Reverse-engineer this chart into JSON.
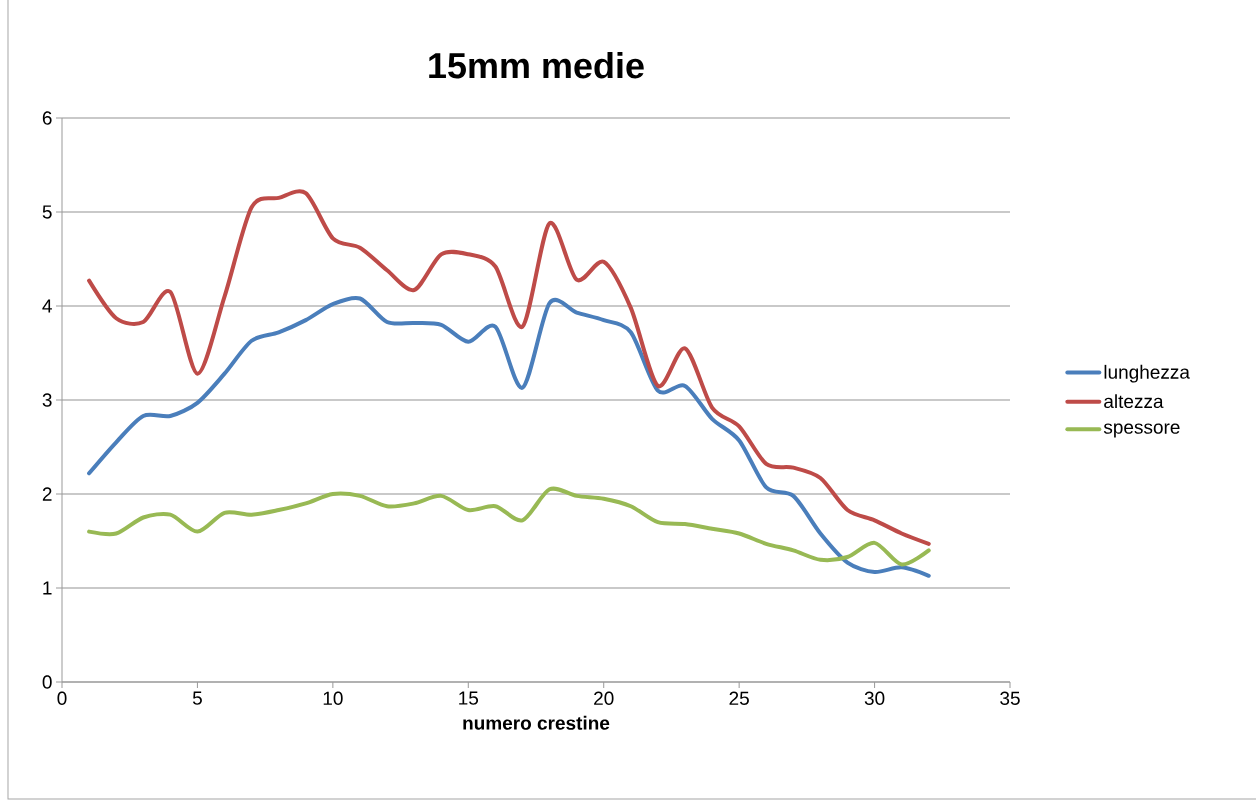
{
  "chart_data": {
    "type": "line",
    "title": "15mm medie",
    "xlabel": "numero crestine",
    "x": [
      1,
      2,
      3,
      4,
      5,
      6,
      7,
      8,
      9,
      10,
      11,
      12,
      13,
      14,
      15,
      16,
      17,
      18,
      19,
      20,
      21,
      22,
      23,
      24,
      25,
      26,
      27,
      28,
      29,
      30,
      31,
      32
    ],
    "series": [
      {
        "name": "lunghezza",
        "color": "#4a7ebb",
        "values": [
          2.22,
          2.55,
          2.83,
          2.83,
          2.97,
          3.28,
          3.63,
          3.72,
          3.85,
          4.02,
          4.08,
          3.83,
          3.82,
          3.8,
          3.62,
          3.78,
          3.13,
          4.03,
          3.93,
          3.85,
          3.72,
          3.1,
          3.15,
          2.8,
          2.57,
          2.07,
          1.98,
          1.58,
          1.27,
          1.17,
          1.22,
          1.13
        ]
      },
      {
        "name": "altezza",
        "color": "#be4b48",
        "values": [
          4.27,
          3.87,
          3.83,
          4.15,
          3.28,
          4.1,
          5.05,
          5.15,
          5.2,
          4.72,
          4.62,
          4.38,
          4.17,
          4.55,
          4.55,
          4.42,
          3.78,
          4.88,
          4.28,
          4.47,
          3.98,
          3.15,
          3.55,
          2.92,
          2.72,
          2.32,
          2.28,
          2.17,
          1.83,
          1.72,
          1.58,
          1.47
        ]
      },
      {
        "name": "spessore",
        "color": "#98b954",
        "values": [
          1.6,
          1.58,
          1.75,
          1.78,
          1.6,
          1.8,
          1.78,
          1.83,
          1.9,
          2.0,
          1.98,
          1.87,
          1.9,
          1.98,
          1.83,
          1.87,
          1.72,
          2.05,
          1.98,
          1.95,
          1.87,
          1.7,
          1.68,
          1.63,
          1.58,
          1.47,
          1.4,
          1.3,
          1.33,
          1.48,
          1.25,
          1.4
        ]
      }
    ],
    "xlim": [
      0,
      35
    ],
    "xticks": [
      0,
      5,
      10,
      15,
      20,
      25,
      30,
      35
    ],
    "ylim": [
      0,
      6
    ],
    "yticks": [
      0,
      1,
      2,
      3,
      4,
      5,
      6
    ],
    "grid": "y",
    "legend": "right",
    "marker": "none",
    "line_style": "solid"
  }
}
